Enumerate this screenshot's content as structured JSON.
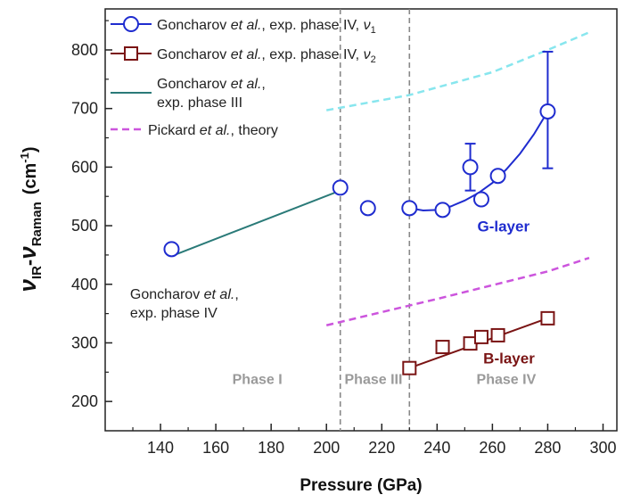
{
  "chart_data": {
    "type": "scatter",
    "xlabel": "Pressure (GPa)",
    "ylabel_parts": {
      "nu": "ν",
      "ir": "IR",
      "minus": "-",
      "raman": "Raman",
      "unit_open": "(cm",
      "unit_exp": "-1",
      "unit_close": ")"
    },
    "xlim": [
      120,
      305
    ],
    "ylim": [
      150,
      870
    ],
    "xticks": [
      140,
      160,
      180,
      200,
      220,
      240,
      260,
      280,
      300
    ],
    "yticks": [
      200,
      300,
      400,
      500,
      600,
      700,
      800
    ],
    "grid": false,
    "legend_position": "top-left",
    "legend": [
      {
        "prefix": "Goncharov ",
        "italic": "et al.",
        "rest": ", exp. phase IV, ",
        "sym": "ν",
        "sub": "1",
        "marker": "circle",
        "color": "#1f2ccf"
      },
      {
        "prefix": "Goncharov ",
        "italic": "et al.",
        "rest": ", exp. phase IV, ",
        "sym": "ν",
        "sub": "2",
        "marker": "square",
        "color": "#7a1414"
      },
      {
        "prefix": "Goncharov ",
        "italic": "et al.",
        "rest": ",",
        "line2": "exp. phase III",
        "marker": "line",
        "color": "#2a7a78"
      },
      {
        "prefix": "Pickard ",
        "italic": "et al.",
        "rest": ", theory",
        "marker": "dash",
        "color": "#cc55dd"
      }
    ],
    "series": [
      {
        "name": "Goncharov et al., exp. phase IV, ν1",
        "marker": "circle",
        "color": "#1f2ccf",
        "points": [
          [
            144,
            460
          ],
          [
            205,
            565
          ],
          [
            215,
            530
          ],
          [
            230,
            530
          ],
          [
            242,
            527
          ],
          [
            252,
            600
          ],
          [
            256,
            545
          ],
          [
            262,
            585
          ],
          [
            280,
            695
          ]
        ],
        "errorbars": [
          {
            "x": 252,
            "low": 560,
            "high": 640
          },
          {
            "x": 280,
            "low": 598,
            "high": 797
          }
        ],
        "fit_curve": [
          [
            230,
            530
          ],
          [
            235,
            526
          ],
          [
            240,
            527
          ],
          [
            245,
            533
          ],
          [
            250,
            543
          ],
          [
            255,
            556
          ],
          [
            260,
            573
          ],
          [
            265,
            596
          ],
          [
            270,
            623
          ],
          [
            275,
            656
          ],
          [
            280,
            695
          ]
        ]
      },
      {
        "name": "Goncharov et al., exp. phase IV, ν2",
        "marker": "square",
        "color": "#7a1414",
        "points": [
          [
            230,
            257
          ],
          [
            242,
            293
          ],
          [
            252,
            299
          ],
          [
            256,
            310
          ],
          [
            262,
            313
          ],
          [
            280,
            342
          ]
        ],
        "fit_line": [
          [
            230,
            257
          ],
          [
            280,
            342
          ]
        ]
      },
      {
        "name": "Goncharov et al., exp. phase III",
        "line": [
          [
            145,
            450
          ],
          [
            205,
            560
          ]
        ],
        "color": "#2a7a78"
      },
      {
        "name": "Pickard et al., theory (G-layer)",
        "line": [
          [
            200,
            697
          ],
          [
            230,
            723
          ],
          [
            260,
            762
          ],
          [
            280,
            800
          ],
          [
            295,
            830
          ]
        ],
        "color": "#88e6ee",
        "dashed": true
      },
      {
        "name": "Pickard et al., theory (B-layer)",
        "line": [
          [
            200,
            330
          ],
          [
            240,
            375
          ],
          [
            280,
            422
          ],
          [
            295,
            445
          ]
        ],
        "color": "#cc55dd",
        "dashed": true
      }
    ],
    "phase_boundaries": [
      205,
      230
    ],
    "phase_labels": [
      {
        "text": "Phase I",
        "x": 175,
        "y": 230
      },
      {
        "text": "Phase III",
        "x": 217,
        "y": 230
      },
      {
        "text": "Phase IV",
        "x": 265,
        "y": 230
      }
    ],
    "annotations": [
      {
        "text": "G-layer",
        "x": 264,
        "y": 490,
        "color": "#1f2ccf"
      },
      {
        "text": "B-layer",
        "x": 266,
        "y": 265,
        "color": "#7a1414"
      }
    ],
    "note": {
      "prefix": "Goncharov ",
      "italic": "et al.",
      "rest": ",",
      "line2": "exp. phase IV",
      "x": 129,
      "y": 375
    }
  }
}
